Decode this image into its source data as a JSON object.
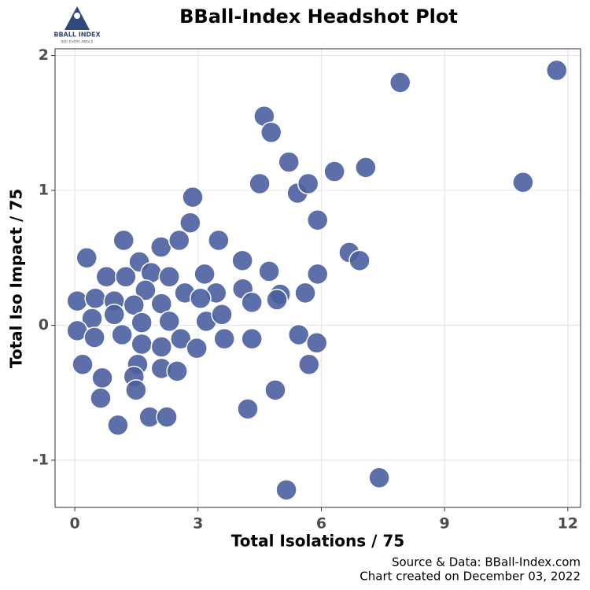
{
  "chart_data": {
    "type": "scatter",
    "title": "BBall-Index Headshot Plot",
    "logo_text": "BBALL INDEX",
    "logo_tagline": "SEE EVERY ANGLE",
    "x_label": "Total Isolations / 75",
    "y_label": "Total Iso Impact / 75",
    "source": "Source & Data: BBall-Index.com",
    "created": "Chart created on December 03, 2022",
    "xlim": [
      -0.48,
      12.31
    ],
    "ylim": [
      -1.35,
      2.05
    ],
    "xticks": [
      0,
      3,
      6,
      9,
      12
    ],
    "yticks": [
      -1,
      0,
      1,
      2
    ],
    "grid": true,
    "color": "#4a5f9e",
    "x": [
      11.73,
      7.92,
      10.91,
      7.41,
      5.15,
      4.61,
      4.78,
      5.21,
      4.5,
      5.42,
      6.32,
      7.08,
      5.68,
      2.87,
      5.91,
      2.81,
      1.19,
      3.5,
      0.29,
      2.1,
      2.54,
      4.08,
      3.16,
      4.73,
      6.68,
      6.93,
      5.91,
      1.57,
      0.77,
      1.24,
      1.86,
      1.72,
      2.3,
      2.68,
      3.44,
      4.09,
      5.0,
      5.61,
      0.06,
      0.5,
      0.96,
      1.44,
      2.11,
      3.06,
      4.31,
      4.92,
      0.42,
      0.96,
      1.63,
      2.3,
      3.2,
      3.58,
      0.06,
      0.48,
      1.15,
      2.58,
      3.64,
      4.31,
      5.45,
      5.89,
      1.63,
      2.11,
      2.97,
      5.7,
      0.19,
      1.53,
      2.11,
      2.49,
      0.67,
      1.44,
      0.63,
      1.49,
      4.21,
      4.88,
      1.05,
      1.82,
      2.24
    ],
    "values": [
      1.89,
      1.8,
      1.06,
      -1.13,
      -1.22,
      1.55,
      1.43,
      1.21,
      1.05,
      0.98,
      1.14,
      1.17,
      1.05,
      0.95,
      0.78,
      0.76,
      0.63,
      0.63,
      0.5,
      0.58,
      0.63,
      0.48,
      0.38,
      0.4,
      0.54,
      0.48,
      0.38,
      0.47,
      0.36,
      0.36,
      0.39,
      0.26,
      0.36,
      0.24,
      0.24,
      0.27,
      0.23,
      0.24,
      0.18,
      0.2,
      0.18,
      0.15,
      0.16,
      0.2,
      0.17,
      0.19,
      0.05,
      0.08,
      0.02,
      0.03,
      0.03,
      0.08,
      -0.04,
      -0.09,
      -0.07,
      -0.1,
      -0.1,
      -0.1,
      -0.07,
      -0.13,
      -0.14,
      -0.16,
      -0.17,
      -0.29,
      -0.29,
      -0.29,
      -0.32,
      -0.34,
      -0.39,
      -0.38,
      -0.54,
      -0.48,
      -0.62,
      -0.48,
      -0.74,
      -0.68,
      -0.68
    ]
  }
}
